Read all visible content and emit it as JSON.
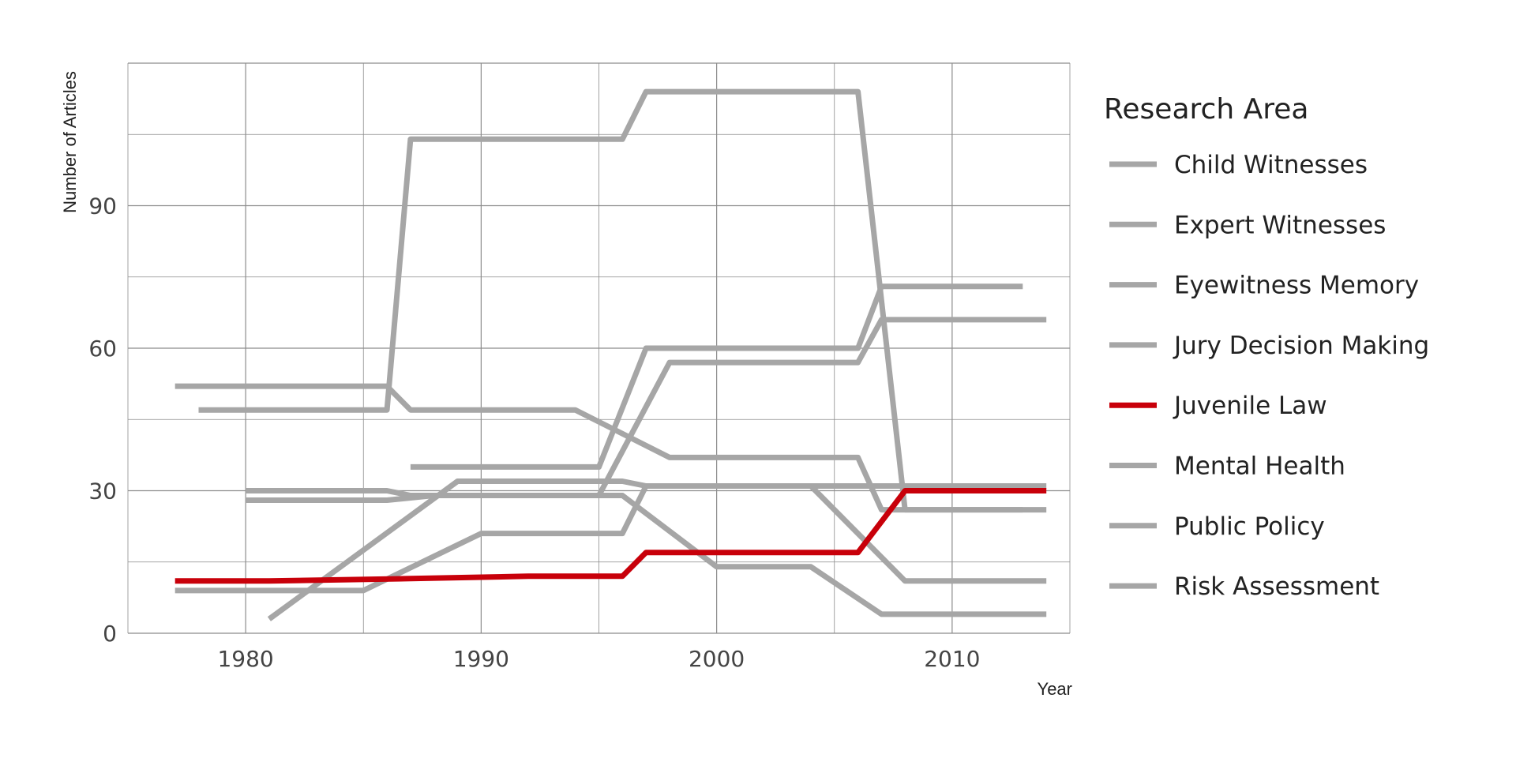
{
  "chart_data": {
    "type": "line",
    "title": "",
    "xlabel": "Year",
    "ylabel": "Number of Articles",
    "xlim": [
      1975,
      2015
    ],
    "ylim": [
      0,
      120
    ],
    "x_ticks": [
      1980,
      1990,
      2000,
      2010
    ],
    "y_ticks": [
      0,
      30,
      60,
      90
    ],
    "grid": true,
    "legend": {
      "title": "Research Area",
      "placement": "right"
    },
    "colors": {
      "highlight": "#c8000a",
      "muted": "#a6a6a6",
      "grid": "#8c8c8c"
    },
    "series": [
      {
        "name": "Child Witnesses",
        "highlight": false,
        "x": [
          1977,
          1986,
          1987,
          1994,
          1998,
          2006,
          2007,
          2014
        ],
        "y": [
          52,
          52,
          47,
          47,
          37,
          37,
          26,
          26
        ]
      },
      {
        "name": "Expert Witnesses",
        "highlight": false,
        "x": [
          1978,
          1986,
          1987,
          1996,
          1997,
          2006,
          2008,
          2013
        ],
        "y": [
          47,
          47,
          104,
          104,
          114,
          114,
          26,
          26
        ]
      },
      {
        "name": "Eyewitness Memory",
        "highlight": false,
        "x": [
          1987,
          1995,
          1997,
          2006,
          2007,
          2013
        ],
        "y": [
          35,
          35,
          60,
          60,
          73,
          73
        ]
      },
      {
        "name": "Jury Decision Making",
        "highlight": false,
        "x": [
          1980,
          1986,
          1988,
          1995,
          1998,
          2006,
          2007,
          2014
        ],
        "y": [
          28,
          28,
          29,
          29,
          57,
          57,
          66,
          66
        ]
      },
      {
        "name": "Juvenile Law",
        "highlight": true,
        "x": [
          1977,
          1981,
          1987,
          1992,
          1996,
          1997,
          2006,
          2008,
          2014
        ],
        "y": [
          11,
          11,
          11.5,
          12,
          12,
          17,
          17,
          30,
          30
        ]
      },
      {
        "name": "Mental Health",
        "highlight": false,
        "x": [
          1981,
          1989,
          1996,
          1997,
          2014
        ],
        "y": [
          3,
          32,
          32,
          31,
          31
        ]
      },
      {
        "name": "Public Policy",
        "highlight": false,
        "x": [
          1977,
          1985,
          1990,
          1996,
          1997,
          2004,
          2008,
          2014
        ],
        "y": [
          9,
          9,
          21,
          21,
          31,
          31,
          11,
          11
        ]
      },
      {
        "name": "Risk Assessment",
        "highlight": false,
        "x": [
          1980,
          1986,
          1987,
          1996,
          2000,
          2004,
          2007,
          2014
        ],
        "y": [
          30,
          30,
          29,
          29,
          14,
          14,
          4,
          4
        ]
      }
    ]
  }
}
